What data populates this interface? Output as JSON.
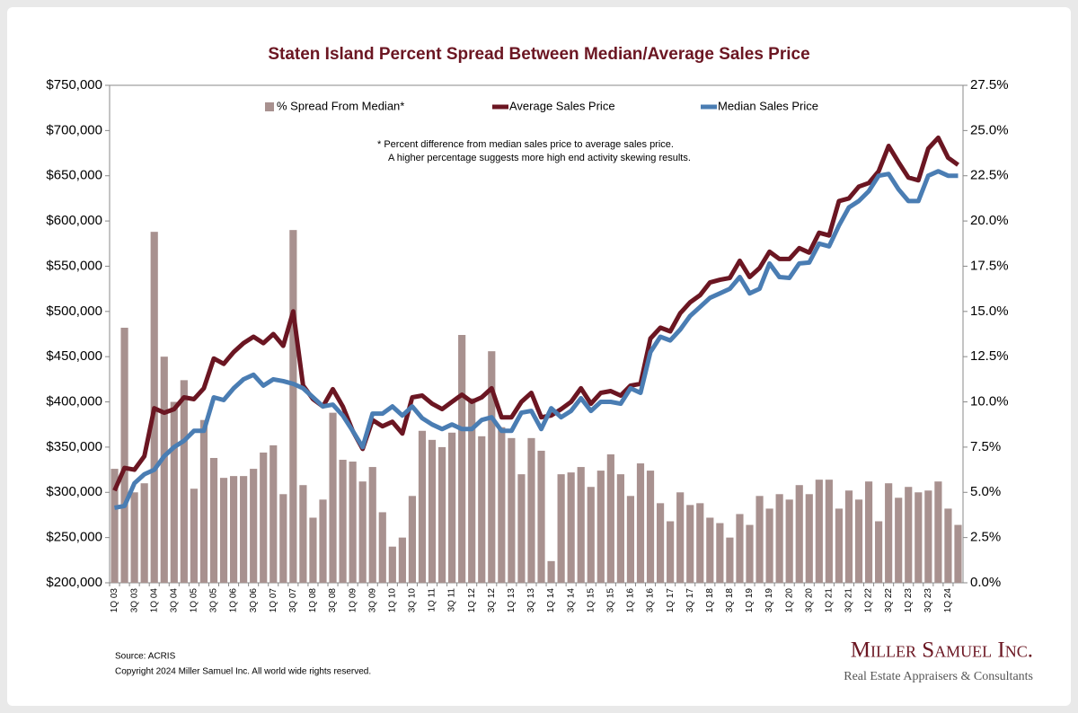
{
  "chart_data": {
    "type": "combo",
    "title": "Staten Island Percent Spread Between Median/Average Sales Price",
    "annotations": [
      "*  Percent difference from median sales price to average sales price.",
      "A higher percentage suggests more high end activity skewing results."
    ],
    "source": "Source: ACRIS",
    "copyright": "Copyright 2024 Miller Samuel Inc.  All world wide rights reserved.",
    "brand": "Miller Samuel Inc.",
    "brand_tagline": "Real Estate Appraisers & Consultants",
    "categories": [
      "1Q 03",
      null,
      "3Q 03",
      null,
      "1Q 04",
      null,
      "3Q 04",
      null,
      "1Q 05",
      null,
      "3Q 05",
      null,
      "1Q 06",
      null,
      "3Q 06",
      null,
      "1Q 07",
      null,
      "3Q 07",
      null,
      "1Q 08",
      null,
      "3Q 08",
      null,
      "1Q 09",
      null,
      "3Q 09",
      null,
      "1Q 10",
      null,
      "3Q 10",
      null,
      "1Q 11",
      null,
      "3Q 11",
      null,
      "1Q 12",
      null,
      "3Q 12",
      null,
      "1Q 13",
      null,
      "3Q 13",
      null,
      "1Q 14",
      null,
      "3Q 14",
      null,
      "1Q 15",
      null,
      "3Q 15",
      null,
      "1Q 16",
      null,
      "3Q 16",
      null,
      "1Q 17",
      null,
      "3Q 17",
      null,
      "1Q 18",
      null,
      "3Q 18",
      null,
      "1Q 19",
      null,
      "3Q 19",
      null,
      "1Q 20",
      null,
      "3Q 20",
      null,
      "1Q 21",
      null,
      "3Q 21",
      null,
      "1Q 22",
      null,
      "3Q 22",
      null,
      "1Q 23",
      null,
      "3Q 23",
      null,
      "1Q 24",
      null
    ],
    "series": [
      {
        "name": "% Spread From Median*",
        "type": "bar",
        "axis": "y2",
        "color": "#a8918f",
        "values": [
          6.3,
          14.1,
          5.0,
          5.5,
          19.4,
          12.5,
          10.0,
          11.2,
          5.2,
          9.0,
          6.9,
          5.8,
          5.9,
          5.9,
          6.3,
          7.2,
          7.6,
          4.9,
          19.5,
          5.4,
          3.6,
          4.6,
          9.4,
          6.8,
          6.7,
          5.6,
          6.4,
          3.9,
          2.0,
          2.5,
          4.8,
          8.4,
          7.9,
          7.5,
          8.3,
          13.7,
          10.2,
          8.1,
          12.8,
          8.6,
          8.0,
          6.0,
          8.0,
          7.3,
          1.2,
          6.0,
          6.1,
          6.4,
          5.3,
          6.2,
          7.1,
          6.0,
          4.8,
          6.6,
          6.2,
          4.4,
          3.4,
          5.0,
          4.3,
          4.4,
          3.6,
          3.3,
          2.5,
          3.8,
          3.2,
          4.8,
          4.1,
          4.9,
          4.6,
          5.4,
          4.9,
          5.7,
          5.7,
          4.1,
          5.1,
          4.6,
          5.6,
          3.4,
          5.5,
          4.7,
          5.3,
          5.0,
          5.1,
          5.6,
          4.1,
          3.2
        ]
      },
      {
        "name": "Average Sales Price",
        "type": "line",
        "axis": "y",
        "color": "#6b1622",
        "values": [
          302000,
          327000,
          325000,
          340000,
          393000,
          388000,
          392000,
          405000,
          403000,
          415000,
          448000,
          442000,
          455000,
          465000,
          472000,
          465000,
          475000,
          462000,
          500000,
          418000,
          403000,
          395000,
          414000,
          395000,
          368000,
          348000,
          380000,
          373000,
          378000,
          365000,
          405000,
          407000,
          398000,
          392000,
          400000,
          408000,
          400000,
          405000,
          415000,
          383000,
          383000,
          400000,
          410000,
          383000,
          385000,
          392000,
          400000,
          415000,
          398000,
          410000,
          412000,
          407000,
          418000,
          420000,
          470000,
          482000,
          478000,
          498000,
          510000,
          518000,
          532000,
          535000,
          537000,
          556000,
          538000,
          548000,
          566000,
          558000,
          558000,
          570000,
          565000,
          587000,
          584000,
          622000,
          625000,
          638000,
          642000,
          655000,
          683000,
          665000,
          648000,
          645000,
          680000,
          692000,
          670000,
          662000
        ]
      },
      {
        "name": "Median Sales Price",
        "type": "line",
        "axis": "y",
        "color": "#4a7db3",
        "values": [
          283000,
          285000,
          310000,
          320000,
          325000,
          340000,
          350000,
          357000,
          368000,
          368000,
          405000,
          402000,
          415000,
          425000,
          430000,
          418000,
          425000,
          423000,
          420000,
          415000,
          405000,
          395000,
          397000,
          385000,
          368000,
          350000,
          387000,
          387000,
          395000,
          385000,
          395000,
          382000,
          375000,
          370000,
          375000,
          370000,
          370000,
          380000,
          383000,
          368000,
          368000,
          388000,
          390000,
          370000,
          393000,
          383000,
          390000,
          404000,
          390000,
          400000,
          400000,
          398000,
          415000,
          410000,
          455000,
          472000,
          468000,
          480000,
          495000,
          505000,
          515000,
          520000,
          525000,
          538000,
          520000,
          525000,
          553000,
          538000,
          537000,
          553000,
          554000,
          575000,
          572000,
          595000,
          615000,
          622000,
          633000,
          650000,
          652000,
          635000,
          622000,
          622000,
          650000,
          655000,
          650000,
          650000
        ]
      }
    ],
    "ylim": [
      200000,
      750000
    ],
    "yticks": [
      {
        "value": 200000,
        "label": "$200,000"
      },
      {
        "value": 250000,
        "label": "$250,000"
      },
      {
        "value": 300000,
        "label": "$300,000"
      },
      {
        "value": 350000,
        "label": "$350,000"
      },
      {
        "value": 400000,
        "label": "$400,000"
      },
      {
        "value": 450000,
        "label": "$450,000"
      },
      {
        "value": 500000,
        "label": "$500,000"
      },
      {
        "value": 550000,
        "label": "$550,000"
      },
      {
        "value": 600000,
        "label": "$600,000"
      },
      {
        "value": 650000,
        "label": "$650,000"
      },
      {
        "value": 700000,
        "label": "$700,000"
      },
      {
        "value": 750000,
        "label": "$750,000"
      }
    ],
    "y2lim": [
      0,
      27.5
    ],
    "y2ticks": [
      {
        "value": 0,
        "label": "0.0%"
      },
      {
        "value": 2.5,
        "label": "2.5%"
      },
      {
        "value": 5,
        "label": "5.0%"
      },
      {
        "value": 7.5,
        "label": "7.5%"
      },
      {
        "value": 10,
        "label": "10.0%"
      },
      {
        "value": 12.5,
        "label": "12.5%"
      },
      {
        "value": 15,
        "label": "15.0%"
      },
      {
        "value": 17.5,
        "label": "17.5%"
      },
      {
        "value": 20,
        "label": "20.0%"
      },
      {
        "value": 22.5,
        "label": "22.5%"
      },
      {
        "value": 25,
        "label": "25.0%"
      },
      {
        "value": 27.5,
        "label": "27.5%"
      }
    ],
    "grid": false,
    "legend": "top"
  }
}
